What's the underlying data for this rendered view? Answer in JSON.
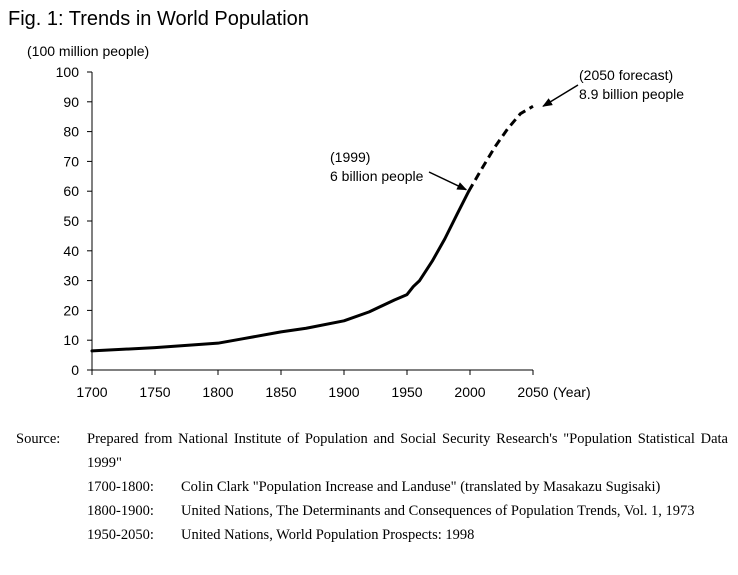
{
  "figure_title": "Fig. 1: Trends in World Population",
  "chart_data": {
    "type": "line",
    "ylabel": "(100 million people)",
    "xlabel": "(Year)",
    "xlim": [
      1700,
      2050
    ],
    "ylim": [
      0,
      100
    ],
    "x_ticks": [
      1700,
      1750,
      1800,
      1850,
      1900,
      1950,
      2000,
      2050
    ],
    "y_ticks": [
      0,
      10,
      20,
      30,
      40,
      50,
      60,
      70,
      80,
      90,
      100
    ],
    "grid": false,
    "series": [
      {
        "style": "solid",
        "color": "#000000",
        "x": [
          1700,
          1750,
          1800,
          1820,
          1850,
          1870,
          1900,
          1920,
          1940,
          1950,
          1955,
          1960,
          1970,
          1980,
          1990,
          1999
        ],
        "y": [
          6.4,
          7.5,
          9.0,
          10.5,
          12.8,
          14.0,
          16.5,
          19.5,
          23.5,
          25.3,
          28.0,
          30.0,
          36.5,
          44.0,
          52.5,
          60.0
        ]
      },
      {
        "style": "dashed",
        "color": "#000000",
        "x": [
          1999,
          2010,
          2020,
          2030,
          2040,
          2050
        ],
        "y": [
          60.0,
          68.0,
          75.0,
          81.0,
          86.0,
          88.5
        ]
      }
    ],
    "annotations": [
      {
        "lines": [
          "(1999)",
          "6 billion people"
        ],
        "x": 1999,
        "y": 60
      },
      {
        "lines": [
          "(2050 forecast)",
          "8.9 billion people"
        ],
        "x": 2050,
        "y": 89
      }
    ]
  },
  "source": {
    "label": "Source:",
    "text": "Prepared from National Institute of Population and Social Security Research's \"Population Statistical Data 1999\"",
    "references": [
      {
        "period": "1700-1800:",
        "text": "Colin Clark \"Population Increase and Landuse\" (translated by Masakazu Sugisaki)"
      },
      {
        "period": "1800-1900:",
        "text": "United Nations, The Determinants and Consequences of Population Trends, Vol. 1, 1973"
      },
      {
        "period": "1950-2050:",
        "text": "United Nations, World Population Prospects: 1998"
      }
    ]
  }
}
